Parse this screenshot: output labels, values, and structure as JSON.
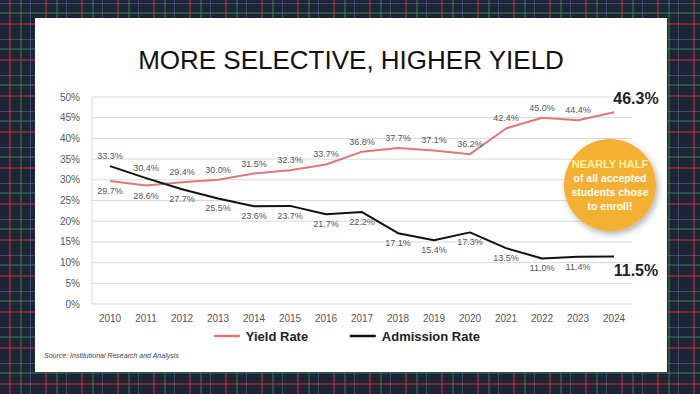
{
  "chart_data": {
    "type": "line",
    "title": "MORE SELECTIVE, HIGHER YIELD",
    "categories": [
      "2010",
      "2011",
      "2012",
      "2013",
      "2014",
      "2015",
      "2016",
      "2017",
      "2018",
      "2019",
      "2020",
      "2021",
      "2022",
      "2023",
      "2024"
    ],
    "series": [
      {
        "name": "Yield Rate",
        "color": "#e0777c",
        "values": [
          29.7,
          28.6,
          29.4,
          30.0,
          31.5,
          32.3,
          33.7,
          36.8,
          37.7,
          37.1,
          36.2,
          42.4,
          45.0,
          44.4,
          46.3
        ],
        "value_labels": [
          "29.7%",
          "28.6%",
          "29.4%",
          "30.0%",
          "31.5%",
          "32.3%",
          "33.7%",
          "36.8%",
          "37.7%",
          "37.1%",
          "36.2%",
          "42.4%",
          "45.0%",
          "44.4%",
          "46.3%"
        ]
      },
      {
        "name": "Admission Rate",
        "color": "#111111",
        "values": [
          33.3,
          30.4,
          27.7,
          25.5,
          23.6,
          23.7,
          21.7,
          22.2,
          17.1,
          15.4,
          17.3,
          13.5,
          11.0,
          11.4,
          11.5
        ],
        "value_labels": [
          "33.3%",
          "30.4%",
          "27.7%",
          "25.5%",
          "23.6%",
          "23.7%",
          "21.7%",
          "22.2%",
          "17.1%",
          "15.4%",
          "17.3%",
          "13.5%",
          "11.0%",
          "11.4%",
          "11.5%"
        ]
      }
    ],
    "ylim": [
      0,
      50
    ],
    "yticks": [
      {
        "value": 0,
        "label": "0%"
      },
      {
        "value": 5,
        "label": "5%"
      },
      {
        "value": 10,
        "label": "10%"
      },
      {
        "value": 15,
        "label": "15%"
      },
      {
        "value": 20,
        "label": "20%"
      },
      {
        "value": 25,
        "label": "25%"
      },
      {
        "value": 30,
        "label": "30%"
      },
      {
        "value": 35,
        "label": "35%"
      },
      {
        "value": 40,
        "label": "40%"
      },
      {
        "value": 45,
        "label": "45%"
      },
      {
        "value": 50,
        "label": "50%"
      }
    ],
    "grid": true,
    "legend": "bottom",
    "data_labels": true,
    "annotations": [
      "NEARLY HALF",
      "of all accepted students chose to enroll!"
    ],
    "source": "Source: Institutional Research and Analysis"
  }
}
